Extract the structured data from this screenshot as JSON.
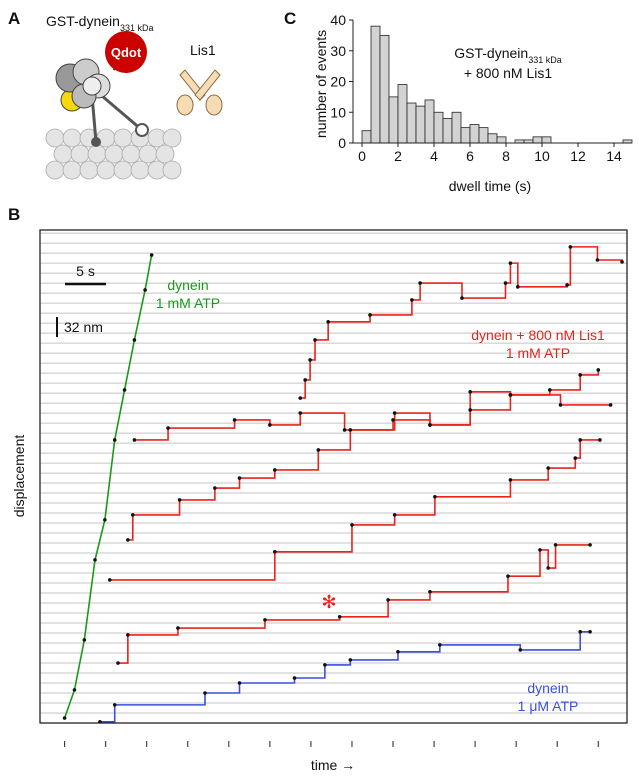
{
  "panels": {
    "a": "A",
    "b": "B",
    "c": "C"
  },
  "schematic": {
    "construct": "GST-dynein",
    "construct_sub": "331 kDa",
    "qdot": "Qdot",
    "lis1": "Lis1"
  },
  "chart_data": [
    {
      "type": "histogram",
      "annotation": {
        "main": "GST-dynein",
        "sub": "331 kDa",
        "line2": "+ 800 nM Lis1"
      },
      "x_label": "dwell time (s)",
      "y_label": "number of events",
      "bins": [
        0,
        0.5,
        1,
        1.5,
        2,
        2.5,
        3,
        3.5,
        4,
        4.5,
        5,
        5.5,
        6,
        6.5,
        7,
        7.5,
        8,
        8.5,
        9,
        9.5,
        10,
        10.5,
        11,
        11.5,
        12,
        12.5,
        13,
        13.5,
        14,
        14.5,
        15
      ],
      "values": [
        4,
        38,
        35,
        15,
        19,
        13,
        12,
        14,
        10,
        8,
        10,
        5,
        6,
        5,
        3,
        2,
        0,
        1,
        1,
        2,
        2,
        0,
        0,
        0,
        0,
        0,
        0,
        0,
        0,
        1
      ],
      "color": "#d3d3d3",
      "xlim": [
        -0.5,
        15
      ],
      "ylim": [
        0,
        40
      ],
      "xticks": [
        0,
        2,
        4,
        6,
        8,
        10,
        12,
        14
      ],
      "yticks": [
        0,
        10,
        20,
        30,
        40
      ]
    },
    {
      "type": "line",
      "x_label": "time →",
      "y_label": "displacement",
      "xlim": [
        -3,
        68.5
      ],
      "ylim": [
        0,
        789
      ],
      "xticks": [
        0,
        5,
        10,
        15,
        20,
        25,
        30,
        35,
        40,
        45,
        50,
        55,
        60,
        65
      ],
      "yticks": [
        0,
        16,
        32,
        48,
        64,
        80,
        96,
        112,
        128,
        144,
        160,
        176,
        192,
        208,
        224,
        240,
        256,
        272,
        288,
        304,
        320,
        336,
        352,
        368,
        384,
        400,
        416,
        432,
        448,
        464,
        480,
        496,
        512,
        528,
        544,
        560,
        576,
        592,
        608,
        624,
        640,
        656,
        672,
        688,
        704,
        720,
        736,
        752,
        768,
        784
      ],
      "grid": true,
      "scale_bars": [
        {
          "label": "5 s",
          "value": 5,
          "axis": "x"
        },
        {
          "label": "32 nm",
          "value": 32,
          "axis": "y"
        }
      ],
      "marker": "✻",
      "groups": [
        {
          "label": [
            "dynein",
            "1 mM ATP"
          ],
          "color": "#1a9a1a",
          "line_shape": "linear",
          "traces": [
            {
              "x": [
                0,
                1.2,
                2.4,
                3.7,
                4.9,
                6.1,
                7.3,
                8.5,
                9.8,
                10.6
              ],
              "values": [
                8,
                53,
                133,
                261,
                325,
                453,
                533,
                613,
                693,
                749
              ]
            }
          ]
        },
        {
          "label": [
            "dynein + 800 nM Lis1",
            "1 mM ATP"
          ],
          "color": "#e8231c",
          "line_shape": "hv",
          "traces": [
            {
              "x": [
                28.7,
                29.3,
                29.9,
                30.5,
                32.1,
                37.2,
                42.3,
                43.3,
                48.4,
                53.7,
                54.3,
                55.2,
                61.2,
                61.6,
                64.9,
                67.9
              ],
              "values": [
                520,
                549,
                581,
                613,
                642,
                653,
                677,
                704,
                680,
                704,
                736,
                698,
                701,
                762,
                741,
                738
              ]
            },
            {
              "x": [
                8.5,
                12.6,
                20.7,
                25.0,
                28.7,
                34.1,
                40.2,
                44.5,
                49.4,
                54.3,
                60.4,
                66.5
              ],
              "values": [
                453,
                472,
                485,
                477,
                496,
                469,
                496,
                477,
                530,
                525,
                509,
                509
              ]
            },
            {
              "x": [
                7.7,
                8.3,
                14.0,
                18.3,
                21.3,
                25.6,
                30.9,
                34.8,
                40.0,
                44.5,
                49.4,
                54.3,
                59.1,
                62.8,
                65.0
              ],
              "values": [
                293,
                333,
                357,
                376,
                392,
                405,
                437,
                469,
                485,
                477,
                501,
                525,
                533,
                557,
                565
              ]
            },
            {
              "x": [
                5.5,
                25.6,
                35.0,
                40.2,
                45.1,
                54.3,
                58.9,
                62.2,
                62.8,
                65.2
              ],
              "values": [
                229,
                274,
                317,
                333,
                362,
                389,
                408,
                424,
                453,
                453
              ]
            },
            {
              "x": [
                6.5,
                7.7,
                13.8,
                24.4,
                33.5,
                39.4,
                44.5,
                54.0,
                57.9,
                58.9,
                59.8,
                64.0
              ],
              "values": [
                96,
                141,
                152,
                165,
                170,
                197,
                210,
                235,
                277,
                248,
                285,
                285
              ]
            }
          ]
        },
        {
          "label": [
            "dynein",
            "1 μM ATP"
          ],
          "color": "#3a4fe0",
          "line_shape": "hv",
          "traces": [
            {
              "x": [
                4.3,
                6.1,
                17.1,
                21.3,
                28.0,
                31.7,
                34.8,
                40.6,
                45.7,
                55.5,
                62.8,
                64.0
              ],
              "values": [
                2,
                29,
                48,
                64,
                72,
                93,
                101,
                114,
                125,
                117,
                146,
                146
              ]
            }
          ]
        }
      ]
    }
  ]
}
